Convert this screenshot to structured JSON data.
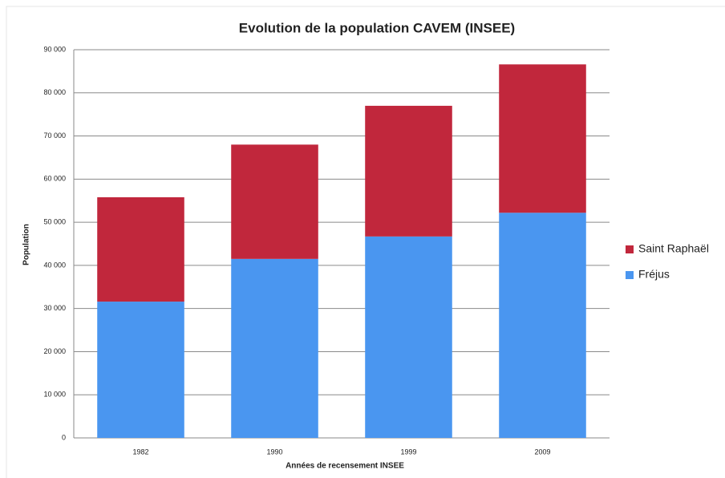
{
  "chart_data": {
    "type": "stacked_bar",
    "title": "Evolution de la population CAVEM (INSEE)",
    "x_label": "Années de recensement INSEE",
    "y_label": "Population",
    "categories": [
      "1982",
      "1990",
      "1999",
      "2009"
    ],
    "series": [
      {
        "name": "Fréjus",
        "color": "#4a96f0",
        "values": [
          31600,
          41500,
          46700,
          52200
        ]
      },
      {
        "name": "Saint Raphaël",
        "color": "#c1273c",
        "values": [
          24200,
          26500,
          30300,
          34400
        ]
      }
    ],
    "ylim": [
      0,
      90000
    ],
    "yticks": [
      0,
      {
        "value": 10000,
        "label": "10 000"
      },
      {
        "value": 20000,
        "label": "20 000"
      },
      {
        "value": 30000,
        "label": "30 000"
      },
      {
        "value": 40000,
        "label": "40 000"
      },
      {
        "value": 50000,
        "label": "50 000"
      },
      {
        "value": 60000,
        "label": "60 000"
      },
      {
        "value": 70000,
        "label": "70 000"
      },
      {
        "value": 80000,
        "label": "80 000"
      },
      {
        "value": 90000,
        "label": "90 000"
      }
    ],
    "grid": true,
    "legend": "right"
  }
}
